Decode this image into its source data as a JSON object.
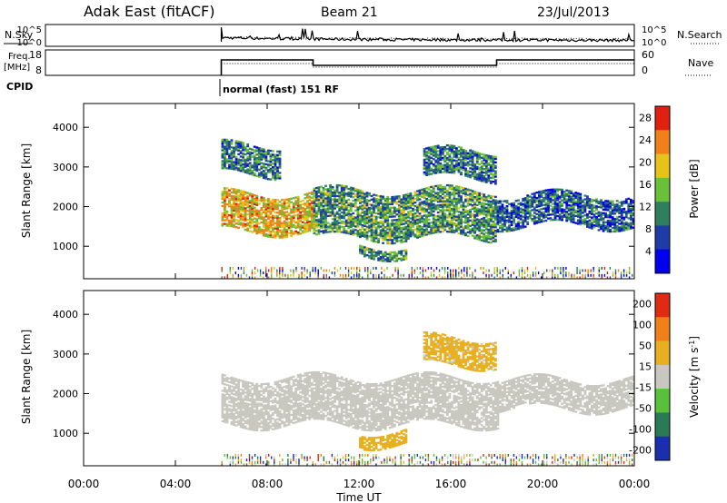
{
  "header": {
    "station": "Adak East (fitACF)",
    "beam": "Beam 21",
    "date": "23/Jul/2013"
  },
  "noise_panel": {
    "left_label": "N.Sky",
    "left_ticks": [
      "10^5",
      "10^0"
    ],
    "right_ticks": [
      "10^5",
      "10^0"
    ],
    "right_label": "N.Search"
  },
  "freq_panel": {
    "left_label_line1": "Freq.",
    "left_label_line2": "[MHz]",
    "left_ticks": [
      "18",
      "8"
    ],
    "right_ticks": [
      "60",
      "0"
    ],
    "right_label": "Nave"
  },
  "cpid": {
    "label": "CPID",
    "program": "normal (fast) 151 RF"
  },
  "x_axis": {
    "title": "Time UT",
    "tick_labels": [
      "00:00",
      "04:00",
      "08:00",
      "12:00",
      "16:00",
      "20:00",
      "00:00"
    ],
    "tick_hours": [
      0,
      4,
      8,
      12,
      16,
      20,
      24
    ]
  },
  "chart_data": [
    {
      "type": "heatmap",
      "title": "Power",
      "ylabel": "Slant Range [km]",
      "xlabel": "Time UT",
      "xlim_hours": [
        0,
        24
      ],
      "ylim": [
        180,
        4600
      ],
      "y_ticks": [
        1000,
        2000,
        3000,
        4000
      ],
      "colorbar": {
        "label": "Power [dB]",
        "ticks": [
          "4",
          "8",
          "12",
          "16",
          "20",
          "24",
          "28"
        ],
        "range": [
          0,
          30
        ],
        "colors": [
          "#0000ee",
          "#1e3ca8",
          "#2e7f5e",
          "#6bbf3a",
          "#e6c21a",
          "#f0801a",
          "#e02010"
        ]
      },
      "echo_bands": [
        {
          "t0": 6.0,
          "t1": 10.0,
          "r0": 1350,
          "r1": 2300,
          "level": 20
        },
        {
          "t0": 10.0,
          "t1": 18.0,
          "r0": 1200,
          "r1": 2400,
          "level": 12
        },
        {
          "t0": 12.0,
          "t1": 14.0,
          "r0": 750,
          "r1": 1000,
          "level": 12
        },
        {
          "t0": 18.0,
          "t1": 24.0,
          "r0": 1500,
          "r1": 2300,
          "level": 8
        },
        {
          "t0": 6.0,
          "t1": 8.5,
          "r0": 2800,
          "r1": 3550,
          "level": 10
        },
        {
          "t0": 14.8,
          "t1": 18.0,
          "r0": 2700,
          "r1": 3400,
          "level": 10
        }
      ]
    },
    {
      "type": "heatmap",
      "title": "Velocity",
      "ylabel": "Slant Range [km]",
      "xlabel": "Time UT",
      "xlim_hours": [
        0,
        24
      ],
      "ylim": [
        180,
        4600
      ],
      "y_ticks": [
        1000,
        2000,
        3000,
        4000
      ],
      "colorbar": {
        "label": "Velocity [m s^-1]",
        "ticks": [
          "200",
          "100",
          "50",
          "15",
          "-15",
          "-50",
          "-100",
          "-200"
        ],
        "range": [
          -250,
          250
        ],
        "colors": [
          "#1a2eb0",
          "#2a7a55",
          "#58c03a",
          "#c8c8c0",
          "#e8b020",
          "#f08018",
          "#e02a12"
        ]
      },
      "echo_bands": [
        {
          "t0": 6.0,
          "t1": 18.0,
          "r0": 1200,
          "r1": 2400,
          "level": 0
        },
        {
          "t0": 18.0,
          "t1": 24.0,
          "r0": 1600,
          "r1": 2350,
          "level": 0
        },
        {
          "t0": 12.0,
          "t1": 14.0,
          "r0": 700,
          "r1": 1050,
          "level": 70
        },
        {
          "t0": 14.8,
          "t1": 18.0,
          "r0": 2700,
          "r1": 3400,
          "level": 60
        }
      ]
    }
  ]
}
